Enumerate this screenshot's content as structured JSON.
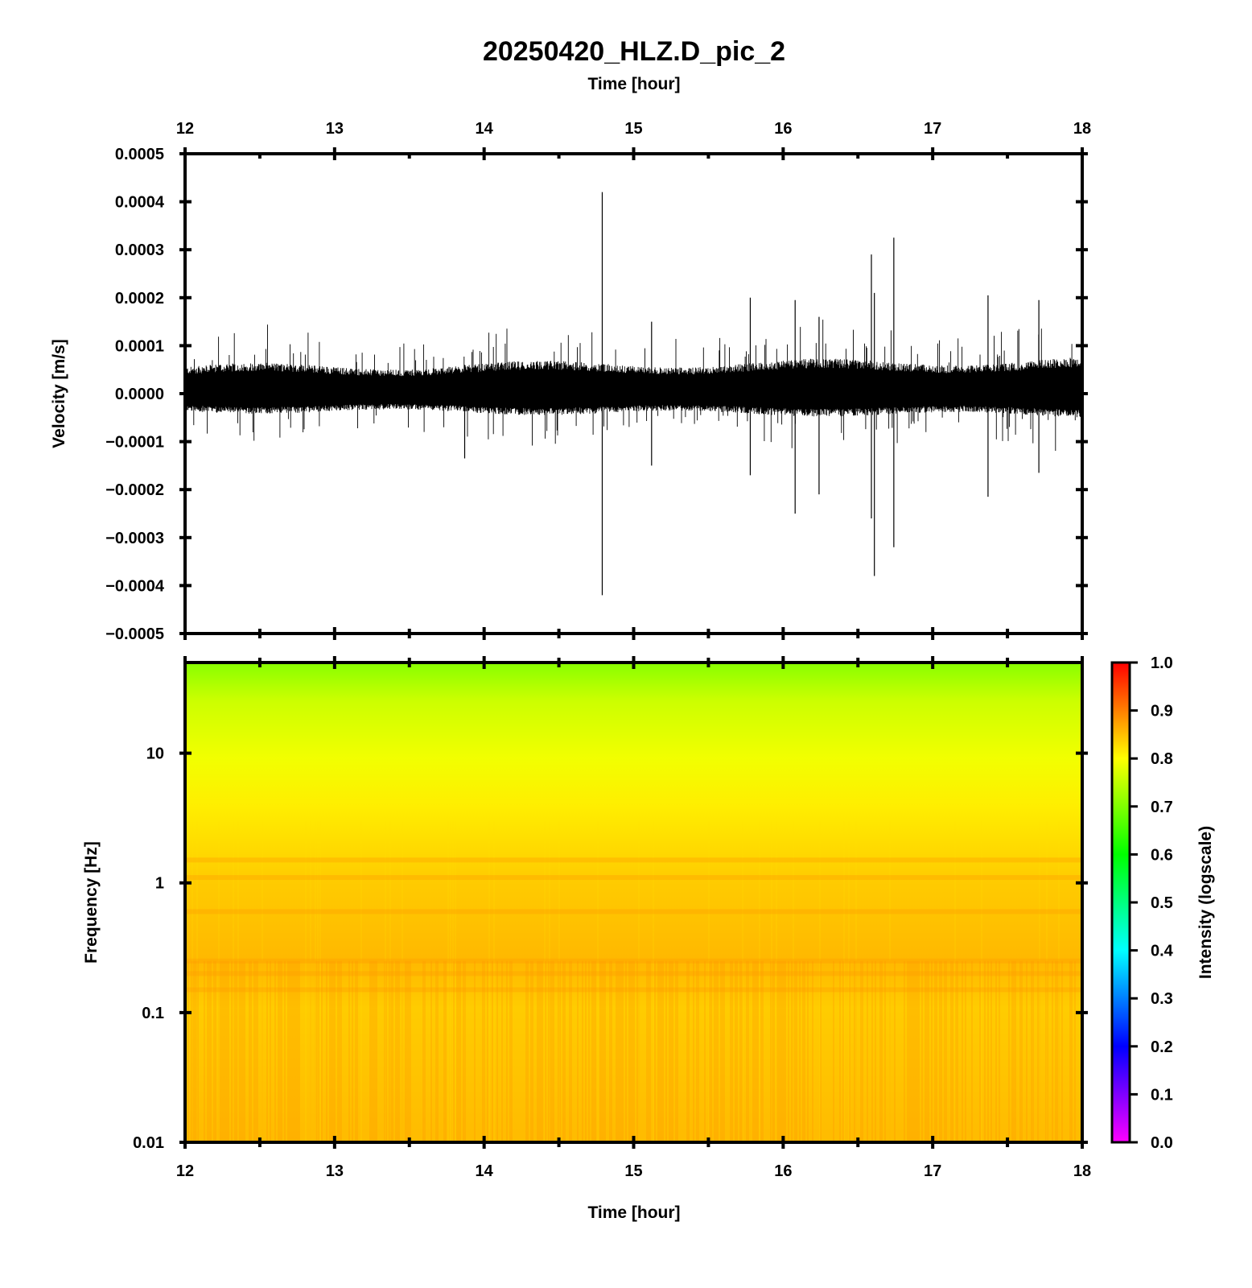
{
  "title": "20250420_HLZ.D_pic_2",
  "chart_data": [
    {
      "type": "line",
      "name": "waveform",
      "xlabel_top": "Time [hour]",
      "ylabel": "Velocity [m/s]",
      "xlim": [
        12,
        18
      ],
      "ylim": [
        -0.0005,
        0.0005
      ],
      "x_ticks": [
        "12",
        "13",
        "14",
        "15",
        "16",
        "17",
        "18"
      ],
      "y_ticks": [
        {
          "value": 0.0005,
          "label": "0.0005"
        },
        {
          "value": 0.0004,
          "label": "0.0004"
        },
        {
          "value": 0.0003,
          "label": "0.0003"
        },
        {
          "value": 0.0002,
          "label": "0.0002"
        },
        {
          "value": 0.0001,
          "label": "0.0001"
        },
        {
          "value": 0.0,
          "label": "0.0000"
        },
        {
          "value": -0.0001,
          "label": "−0.0001"
        },
        {
          "value": -0.0002,
          "label": "−0.0002"
        },
        {
          "value": -0.0003,
          "label": "−0.0003"
        },
        {
          "value": -0.0004,
          "label": "−0.0004"
        },
        {
          "value": -0.0005,
          "label": "−0.0005"
        }
      ],
      "noise_band": [
        -3e-05,
        5e-05
      ],
      "spikes": [
        {
          "x": 14.79,
          "max": 0.00042,
          "min": -0.00042
        },
        {
          "x": 15.12,
          "max": 0.00015,
          "min": -0.00015
        },
        {
          "x": 15.78,
          "max": 0.0002,
          "min": -0.00017
        },
        {
          "x": 16.08,
          "max": 0.000195,
          "min": -0.00025
        },
        {
          "x": 16.24,
          "max": 0.00016,
          "min": -0.00021
        },
        {
          "x": 16.59,
          "max": 0.00029,
          "min": -0.00026
        },
        {
          "x": 16.61,
          "max": 0.00021,
          "min": -0.00038
        },
        {
          "x": 16.74,
          "max": 0.000325,
          "min": -0.00032
        },
        {
          "x": 17.37,
          "max": 0.000205,
          "min": -0.000215
        },
        {
          "x": 17.71,
          "max": 0.000195,
          "min": -0.000165
        },
        {
          "x": 13.87,
          "max": 6e-05,
          "min": -0.000135
        }
      ]
    },
    {
      "type": "heatmap",
      "name": "spectrogram",
      "xlabel": "Time [hour]",
      "ylabel": "Frequency [Hz]",
      "xlim": [
        12,
        18
      ],
      "ylim": [
        0.01,
        50
      ],
      "y_scale": "log",
      "x_ticks": [
        "12",
        "13",
        "14",
        "15",
        "16",
        "17",
        "18"
      ],
      "y_ticks": [
        {
          "value": 10,
          "label": "10"
        },
        {
          "value": 1,
          "label": "1"
        },
        {
          "value": 0.1,
          "label": "0.1"
        },
        {
          "value": 0.01,
          "label": "0.01"
        }
      ],
      "intensity_profile": [
        {
          "freq": 50,
          "intensity": 0.7
        },
        {
          "freq": 20,
          "intensity": 0.74
        },
        {
          "freq": 8,
          "intensity": 0.78
        },
        {
          "freq": 3,
          "intensity": 0.8
        },
        {
          "freq": 1,
          "intensity": 0.82
        },
        {
          "freq": 0.2,
          "intensity": 0.83
        },
        {
          "freq": 0.05,
          "intensity": 0.81
        },
        {
          "freq": 0.01,
          "intensity": 0.82
        }
      ],
      "colorbar": {
        "label": "Intensity (logscale)",
        "range": [
          0.0,
          1.0
        ],
        "ticks": [
          "1.0",
          "0.9",
          "0.8",
          "0.7",
          "0.6",
          "0.5",
          "0.4",
          "0.3",
          "0.2",
          "0.1",
          "0.0"
        ],
        "colors": [
          "#ff00ff",
          "#0000ff",
          "#00ffff",
          "#00ff00",
          "#ffff00",
          "#ff0000"
        ]
      }
    }
  ]
}
